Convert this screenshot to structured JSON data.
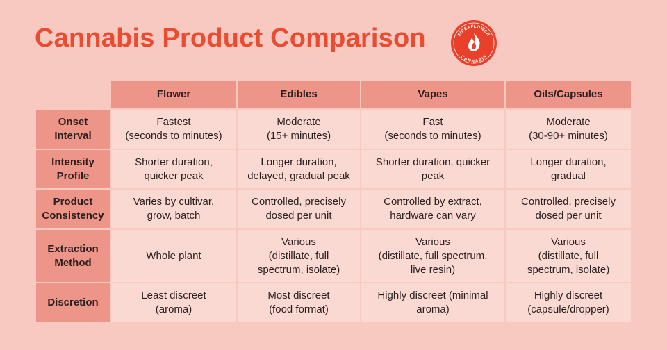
{
  "title": "Cannabis Product Comparison",
  "logo": {
    "top_text": "FIRE&FLOWER",
    "bottom_text": "CANNABIS",
    "color": "#e8402a"
  },
  "columns": [
    "Flower",
    "Edibles",
    "Vapes",
    "Oils/Capsules"
  ],
  "rows": [
    {
      "label": [
        "Onset",
        "Interval"
      ],
      "cells": [
        [
          "Fastest",
          "(seconds to minutes)"
        ],
        [
          "Moderate",
          "(15+ minutes)"
        ],
        [
          "Fast",
          "(seconds to minutes)"
        ],
        [
          "Moderate",
          "(30-90+ minutes)"
        ]
      ]
    },
    {
      "label": [
        "Intensity",
        "Profile"
      ],
      "cells": [
        [
          "Shorter duration,",
          "quicker peak"
        ],
        [
          "Longer duration,",
          "delayed, gradual peak"
        ],
        [
          "Shorter duration, quicker",
          "peak"
        ],
        [
          "Longer duration,",
          "gradual"
        ]
      ]
    },
    {
      "label": [
        "Product",
        "Consistency"
      ],
      "cells": [
        [
          "Varies by cultivar,",
          "grow, batch"
        ],
        [
          "Controlled, precisely",
          "dosed per unit"
        ],
        [
          "Controlled by extract,",
          "hardware can vary"
        ],
        [
          "Controlled, precisely",
          "dosed per unit"
        ]
      ]
    },
    {
      "label": [
        "Extraction",
        "Method"
      ],
      "cells": [
        [
          "Whole plant"
        ],
        [
          "Various",
          "(distillate, full",
          "spectrum, isolate)"
        ],
        [
          "Various",
          "(distillate, full spectrum,",
          "live resin)"
        ],
        [
          "Various",
          "(distillate, full",
          "spectrum, isolate)"
        ]
      ]
    },
    {
      "label": [
        "Discretion"
      ],
      "cells": [
        [
          "Least discreet",
          "(aroma)"
        ],
        [
          "Most discreet",
          "(food format)"
        ],
        [
          "Highly discreet (minimal",
          "aroma)"
        ],
        [
          "Highly discreet",
          "(capsule/dropper)"
        ]
      ]
    }
  ]
}
